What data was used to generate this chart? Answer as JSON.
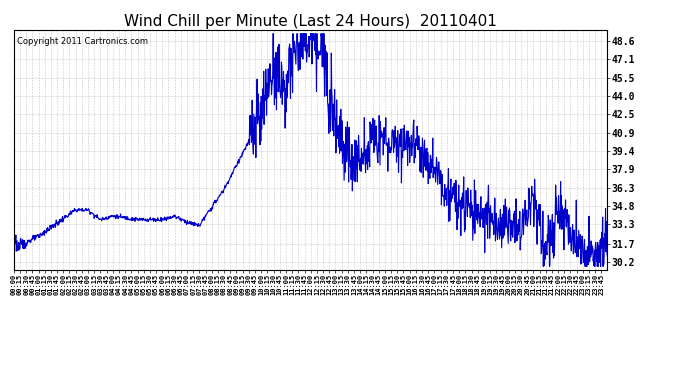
{
  "title": "Wind Chill per Minute (Last 24 Hours)  20110401",
  "copyright_text": "Copyright 2011 Cartronics.com",
  "line_color": "#0000CC",
  "background_color": "#ffffff",
  "grid_color": "#c8c8c8",
  "yticks": [
    30.2,
    31.7,
    33.3,
    34.8,
    36.3,
    37.9,
    39.4,
    40.9,
    42.5,
    44.0,
    45.5,
    47.1,
    48.6
  ],
  "ylim": [
    29.5,
    49.5
  ],
  "title_fontsize": 11,
  "tick_fontsize": 7,
  "copyright_fontsize": 6,
  "x_tick_every": 15,
  "line_width": 0.8
}
